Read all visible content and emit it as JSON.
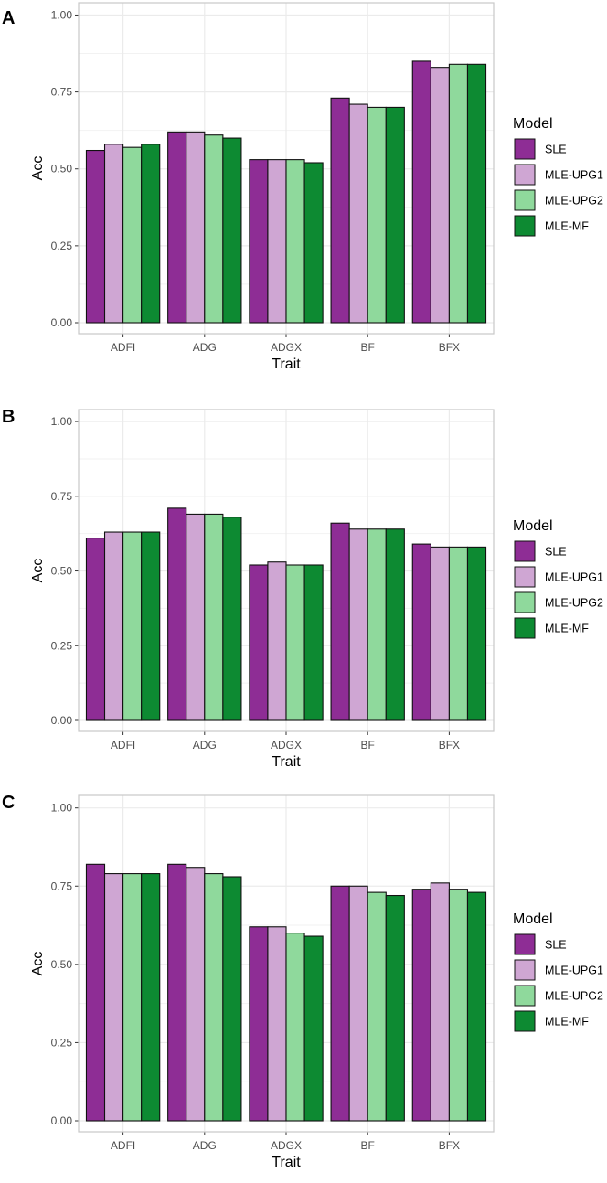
{
  "figure": {
    "model_legend_title": "Model",
    "models": [
      "SLE",
      "MLE-UPG1",
      "MLE-UPG2",
      "MLE-MF"
    ],
    "colors": {
      "SLE": "#8e2d95",
      "MLE-UPG1": "#cfa6d3",
      "MLE-UPG2": "#8fd99c",
      "MLE-MF": "#0d8a32",
      "grid": "#ebebeb",
      "panel_border": "#c8c8c8",
      "bar_stroke": "#111111",
      "tick_text": "#4d4d4d"
    }
  },
  "chart_data": [
    {
      "panel": "A",
      "type": "bar",
      "xlabel": "Trait",
      "ylabel": "Acc",
      "categories": [
        "ADFI",
        "ADG",
        "ADGX",
        "BF",
        "BFX"
      ],
      "ylim": [
        0,
        1.0
      ],
      "yticks": [
        "0.00",
        "0.25",
        "0.50",
        "0.75",
        "1.00"
      ],
      "series": [
        {
          "name": "SLE",
          "values": [
            0.56,
            0.62,
            0.53,
            0.73,
            0.85
          ]
        },
        {
          "name": "MLE-UPG1",
          "values": [
            0.58,
            0.62,
            0.53,
            0.71,
            0.83
          ]
        },
        {
          "name": "MLE-UPG2",
          "values": [
            0.57,
            0.61,
            0.53,
            0.7,
            0.84
          ]
        },
        {
          "name": "MLE-MF",
          "values": [
            0.58,
            0.6,
            0.52,
            0.7,
            0.84
          ]
        }
      ]
    },
    {
      "panel": "B",
      "type": "bar",
      "xlabel": "Trait",
      "ylabel": "Acc",
      "categories": [
        "ADFI",
        "ADG",
        "ADGX",
        "BF",
        "BFX"
      ],
      "ylim": [
        0,
        1.0
      ],
      "yticks": [
        "0.00",
        "0.25",
        "0.50",
        "0.75",
        "1.00"
      ],
      "series": [
        {
          "name": "SLE",
          "values": [
            0.61,
            0.71,
            0.52,
            0.66,
            0.59
          ]
        },
        {
          "name": "MLE-UPG1",
          "values": [
            0.63,
            0.69,
            0.53,
            0.64,
            0.58
          ]
        },
        {
          "name": "MLE-UPG2",
          "values": [
            0.63,
            0.69,
            0.52,
            0.64,
            0.58
          ]
        },
        {
          "name": "MLE-MF",
          "values": [
            0.63,
            0.68,
            0.52,
            0.64,
            0.58
          ]
        }
      ]
    },
    {
      "panel": "C",
      "type": "bar",
      "xlabel": "Trait",
      "ylabel": "Acc",
      "categories": [
        "ADFI",
        "ADG",
        "ADGX",
        "BF",
        "BFX"
      ],
      "ylim": [
        0,
        1.0
      ],
      "yticks": [
        "0.00",
        "0.25",
        "0.50",
        "0.75",
        "1.00"
      ],
      "series": [
        {
          "name": "SLE",
          "values": [
            0.82,
            0.82,
            0.62,
            0.75,
            0.74
          ]
        },
        {
          "name": "MLE-UPG1",
          "values": [
            0.79,
            0.81,
            0.62,
            0.75,
            0.76
          ]
        },
        {
          "name": "MLE-UPG2",
          "values": [
            0.79,
            0.79,
            0.6,
            0.73,
            0.74
          ]
        },
        {
          "name": "MLE-MF",
          "values": [
            0.79,
            0.78,
            0.59,
            0.72,
            0.73
          ]
        }
      ]
    }
  ]
}
